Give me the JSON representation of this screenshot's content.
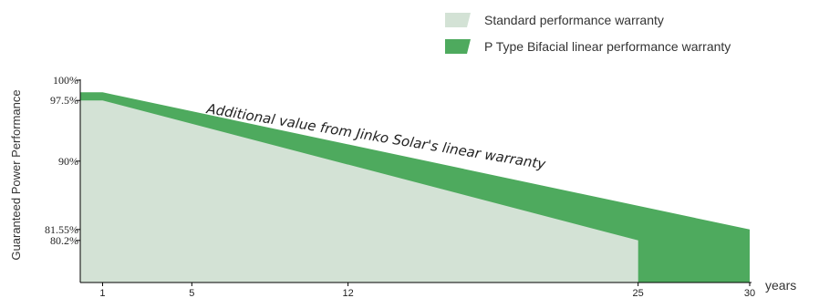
{
  "chart_data": {
    "type": "area",
    "title": "",
    "xlabel": "years",
    "ylabel": "Guaranteed Power Performance",
    "xlim": [
      0,
      30
    ],
    "ylim": [
      75,
      100
    ],
    "y_tick_labels": [
      {
        "value": 100,
        "label": "100%"
      },
      {
        "value": 97.5,
        "label": "97.5%"
      },
      {
        "value": 90,
        "label": "90%"
      },
      {
        "value": 81.55,
        "label": "81.55%"
      },
      {
        "value": 80.2,
        "label": "80.2%"
      }
    ],
    "x_tick_labels": [
      {
        "value": 1,
        "label": "1"
      },
      {
        "value": 5,
        "label": "5"
      },
      {
        "value": 12,
        "label": "12"
      },
      {
        "value": 25,
        "label": "25"
      },
      {
        "value": 30,
        "label": "30"
      }
    ],
    "series": [
      {
        "name": "Standard performance warranty",
        "color": "#d3e2d5",
        "points": [
          [
            0,
            97.5
          ],
          [
            1,
            97.5
          ],
          [
            25,
            80.2
          ],
          [
            25,
            75
          ]
        ]
      },
      {
        "name": "P Type Bifacial linear performance warranty",
        "color": "#4eaa5e",
        "points": [
          [
            0,
            98.5
          ],
          [
            1,
            98.5
          ],
          [
            30,
            81.55
          ],
          [
            30,
            75
          ]
        ]
      }
    ],
    "annotation": "Additional value from Jinko Solar's linear warranty",
    "legend_position": "top-right",
    "grid": false
  }
}
